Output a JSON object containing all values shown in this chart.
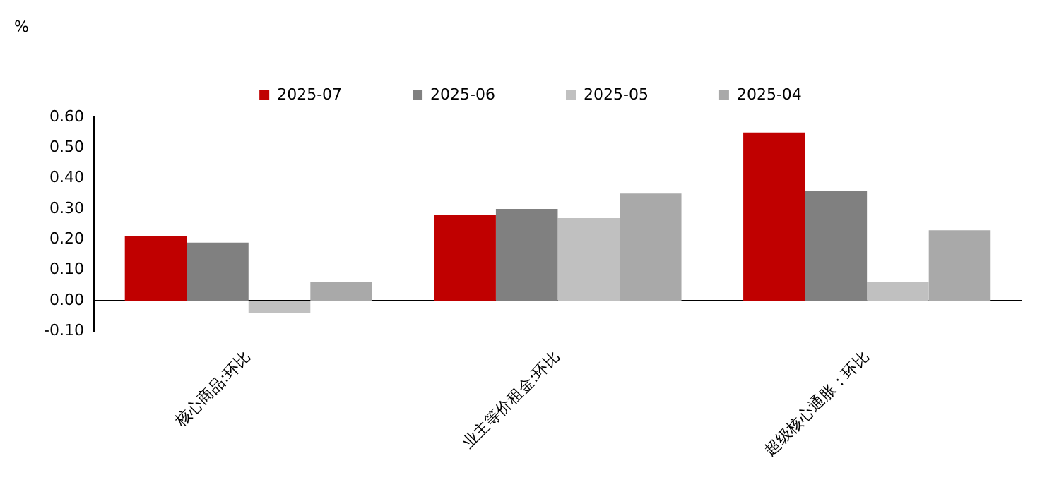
{
  "chart_data": {
    "type": "bar",
    "ylabel": "%",
    "categories": [
      "核心商品:环比",
      "业主等价租金:环比",
      "超级核心通胀：环比"
    ],
    "series": [
      {
        "name": "2025-07",
        "color": "#c00000",
        "values": [
          0.21,
          0.28,
          0.55
        ]
      },
      {
        "name": "2025-06",
        "color": "#808080",
        "values": [
          0.19,
          0.3,
          0.36
        ]
      },
      {
        "name": "2025-05",
        "color": "#c0c0c0",
        "values": [
          -0.04,
          0.27,
          0.06
        ]
      },
      {
        "name": "2025-04",
        "color": "#a9a9a9",
        "values": [
          0.06,
          0.35,
          0.23
        ]
      }
    ],
    "ylim": [
      -0.1,
      0.6
    ],
    "yticks": [
      {
        "value": -0.1,
        "label": "-0.10"
      },
      {
        "value": 0,
        "label": "0.00"
      },
      {
        "value": 0.1,
        "label": "0.10"
      },
      {
        "value": 0.2,
        "label": "0.20"
      },
      {
        "value": 0.3,
        "label": "0.30"
      },
      {
        "value": 0.4,
        "label": "0.40"
      },
      {
        "value": 0.5,
        "label": "0.50"
      },
      {
        "value": 0.6,
        "label": "0.60"
      }
    ],
    "legend": "top"
  }
}
